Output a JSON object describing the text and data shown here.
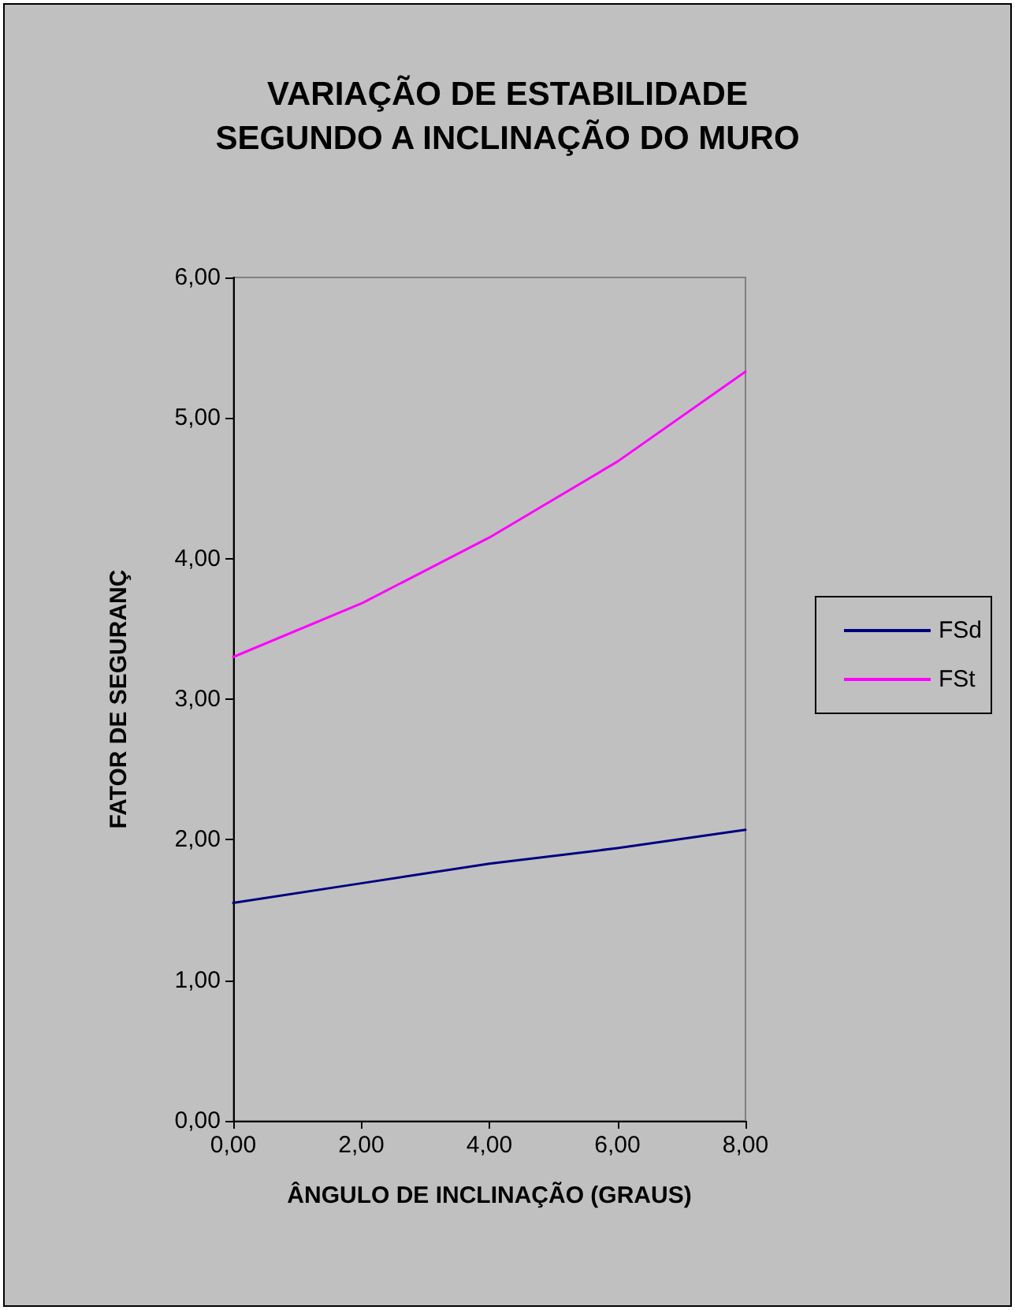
{
  "chart_data": {
    "type": "line",
    "title": "VARIAÇÃO DE ESTABILIDADE\nSEGUNDO A INCLINAÇÃO DO MURO",
    "xlabel": "ÂNGULO DE INCLINAÇÃO (GRAUS)",
    "ylabel": "FATOR DE SEGURANÇ",
    "x": [
      0,
      2,
      4,
      6,
      8
    ],
    "series": [
      {
        "name": "FSd",
        "color": "#000080",
        "values": [
          1.55,
          1.69,
          1.83,
          1.94,
          2.07
        ]
      },
      {
        "name": "FSt",
        "color": "#ff00ff",
        "values": [
          3.3,
          3.68,
          4.15,
          4.69,
          5.33
        ]
      }
    ],
    "xlim": [
      0,
      8
    ],
    "xticks": [
      {
        "value": 0,
        "label": "0,00"
      },
      {
        "value": 2,
        "label": "2,00"
      },
      {
        "value": 4,
        "label": "4,00"
      },
      {
        "value": 6,
        "label": "6,00"
      },
      {
        "value": 8,
        "label": "8,00"
      }
    ],
    "ylim": [
      0,
      6
    ],
    "yticks": [
      {
        "value": 0,
        "label": "0,00"
      },
      {
        "value": 1,
        "label": "1,00"
      },
      {
        "value": 2,
        "label": "2,00"
      },
      {
        "value": 3,
        "label": "3,00"
      },
      {
        "value": 4,
        "label": "4,00"
      },
      {
        "value": 5,
        "label": "5,00"
      },
      {
        "value": 6,
        "label": "6,00"
      }
    ],
    "grid": false,
    "legend": "right",
    "marker": "none",
    "line_style": "solid"
  }
}
